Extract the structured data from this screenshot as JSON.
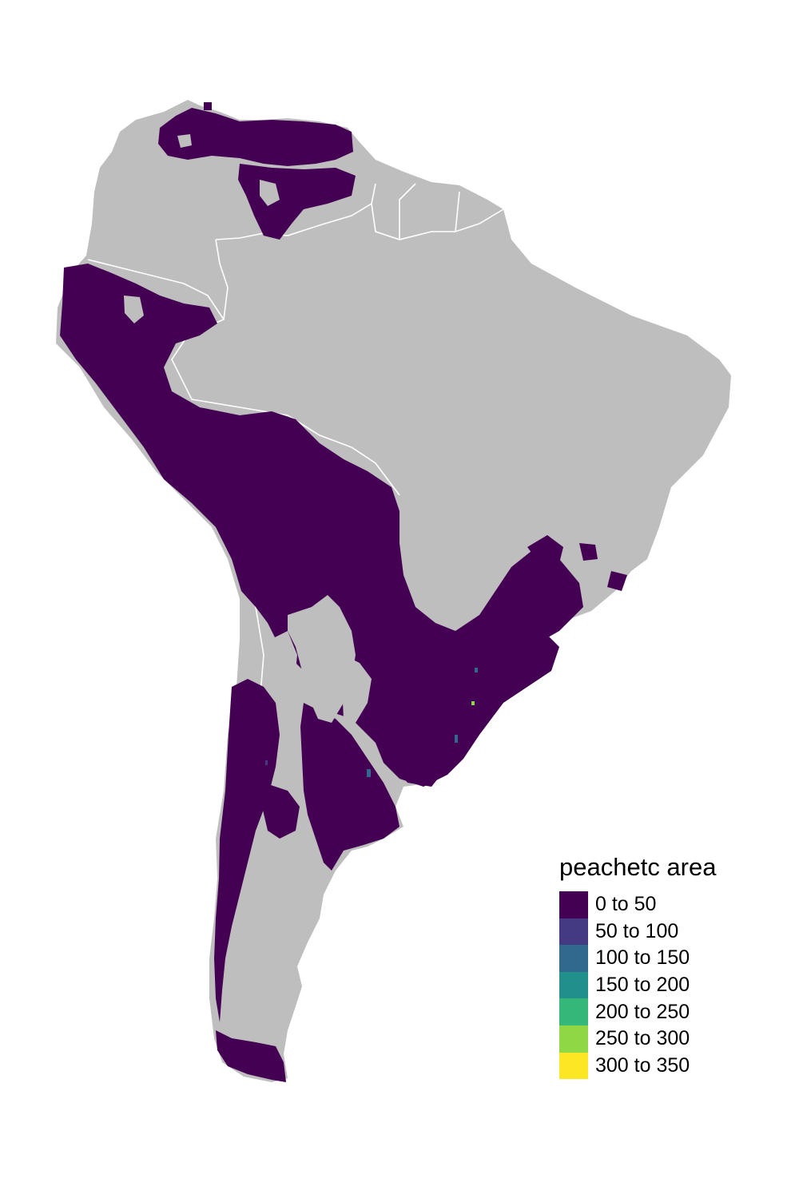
{
  "legend": {
    "title": "peachetc area",
    "items": [
      {
        "label": "0 to 50",
        "color": "#440154"
      },
      {
        "label": "50 to 100",
        "color": "#443A83"
      },
      {
        "label": "100 to 150",
        "color": "#31688E"
      },
      {
        "label": "150 to 200",
        "color": "#21908C"
      },
      {
        "label": "200 to 250",
        "color": "#35B779"
      },
      {
        "label": "250 to 300",
        "color": "#8FD744"
      },
      {
        "label": "300 to 350",
        "color": "#FDE725"
      }
    ]
  },
  "colors": {
    "land": "#BEBEBE",
    "borders": "#FFFFFF",
    "background": "#FFFFFF"
  }
}
